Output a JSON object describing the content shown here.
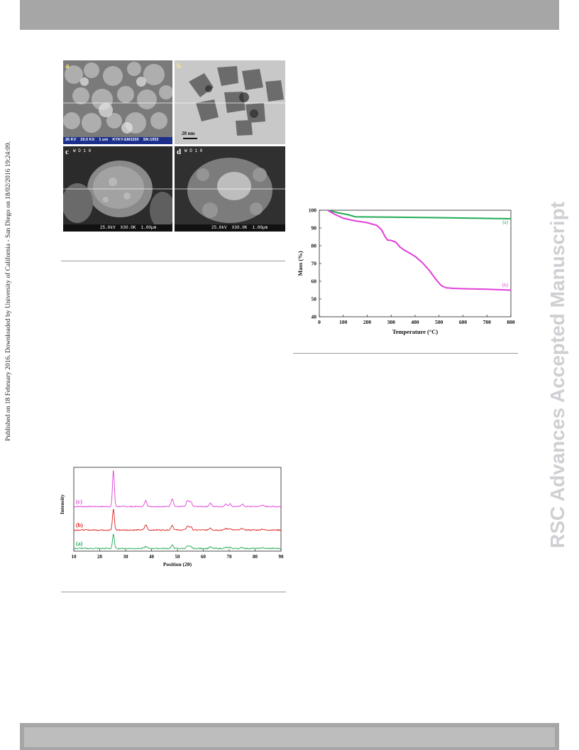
{
  "sidebar_left": "Published on 18 February 2016. Downloaded by University of California - San Diego on 18/02/2016 19:24:09.",
  "sidebar_right": "RSC Advances Accepted Manuscript",
  "micrographs": {
    "a": {
      "label": "a",
      "footer": "26 KV    20.0 KX    1 um    KYKY-EM3200    SN:1053"
    },
    "b": {
      "label": "b",
      "scale": "20 nm"
    },
    "c": {
      "label": "c",
      "header": "W D 1 0",
      "footer": "25.0kV  X30.0K  1.00µm"
    },
    "d": {
      "label": "d",
      "header": "W D 1 0",
      "footer": "25.0kV  X30.0K  1.00µm"
    }
  },
  "chart_data": [
    {
      "type": "line",
      "xlabel": "Temperature  (°C)",
      "ylabel": "Mass  (%)",
      "xlim": [
        0,
        800
      ],
      "ylim": [
        40,
        100
      ],
      "xticks": [
        0,
        100,
        200,
        300,
        400,
        500,
        600,
        700,
        800
      ],
      "yticks": [
        40,
        50,
        60,
        70,
        80,
        90,
        100
      ],
      "series": [
        {
          "name": "(a)",
          "color": "#22aa55",
          "x": [
            35,
            80,
            120,
            140,
            150,
            300,
            500,
            700,
            800
          ],
          "y": [
            100,
            98.5,
            97.5,
            96.7,
            96.3,
            96.1,
            95.8,
            95.4,
            95.2
          ]
        },
        {
          "name": "(b)",
          "color": "#e040d8",
          "x": [
            35,
            60,
            100,
            150,
            200,
            240,
            260,
            275,
            285,
            300,
            320,
            335,
            350,
            400,
            430,
            460,
            490,
            510,
            530,
            560,
            600,
            700,
            800
          ],
          "y": [
            100,
            98,
            95.5,
            94,
            93,
            91.5,
            89,
            85,
            83.2,
            83,
            82,
            79.5,
            78,
            74,
            70.5,
            66,
            60.5,
            57.5,
            56.3,
            56,
            55.8,
            55.5,
            55
          ]
        }
      ]
    },
    {
      "type": "line",
      "xlabel": "Position (2θ)",
      "ylabel": "Intensity",
      "xlim": [
        10,
        90
      ],
      "xticks": [
        10,
        20,
        30,
        40,
        50,
        60,
        70,
        80,
        90
      ],
      "series": [
        {
          "name": "(c)",
          "color": "#e040d8"
        },
        {
          "name": "(b)",
          "color": "#dd1f1f"
        },
        {
          "name": "(a)",
          "color": "#22aa55"
        }
      ],
      "peaks": [
        {
          "x": 25.3,
          "h": [
            1.0,
            1.0,
            1.0
          ]
        },
        {
          "x": 37.8,
          "h": [
            0.14,
            0.24,
            0.16
          ]
        },
        {
          "x": 48.0,
          "h": [
            0.22,
            0.22,
            0.22
          ]
        },
        {
          "x": 53.9,
          "h": [
            0.16,
            0.18,
            0.16
          ]
        },
        {
          "x": 55.1,
          "h": [
            0.14,
            0.16,
            0.14
          ]
        },
        {
          "x": 62.7,
          "h": [
            0.1,
            0.1,
            0.09
          ]
        },
        {
          "x": 68.8,
          "h": [
            0.07,
            0.07,
            0.07
          ]
        },
        {
          "x": 70.3,
          "h": [
            0.07,
            0.07,
            0.07
          ]
        },
        {
          "x": 75.0,
          "h": [
            0.07,
            0.07,
            0.07
          ]
        },
        {
          "x": 82.7,
          "h": [
            0.05,
            0.05,
            0.05
          ]
        }
      ]
    }
  ]
}
